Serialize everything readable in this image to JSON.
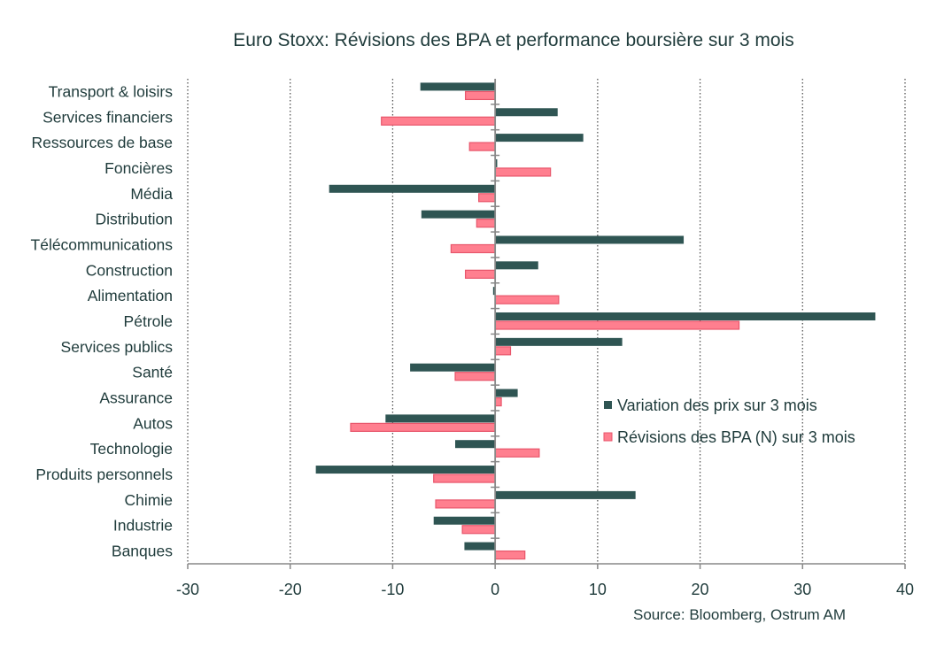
{
  "chart_data": {
    "type": "bar",
    "orientation": "horizontal",
    "title": "Euro Stoxx: Révisions des BPA et performance boursière sur 3 mois",
    "source": "Source: Bloomberg, Ostrum AM",
    "categories": [
      "Transport & loisirs",
      "Services financiers",
      "Ressources de base",
      "Foncières",
      "Média",
      "Distribution",
      "Télécommunications",
      "Construction",
      "Alimentation",
      "Pétrole",
      "Services publics",
      "Santé",
      "Assurance",
      "Autos",
      "Technologie",
      "Produits personnels",
      "Chimie",
      "Industrie",
      "Banques"
    ],
    "series": [
      {
        "name": "Variation des prix sur 3 mois",
        "color": "#2f5553",
        "values": [
          -7.3,
          6.1,
          8.6,
          0.2,
          -16.2,
          -7.2,
          18.4,
          4.2,
          -0.2,
          37.1,
          12.4,
          -8.3,
          2.2,
          -10.7,
          -3.9,
          -17.5,
          13.7,
          -6.0,
          -3.0
        ]
      },
      {
        "name": "Révisions des BPA (N) sur 3 mois",
        "color": "#ff7f8f",
        "values": [
          -2.9,
          -11.1,
          -2.5,
          5.4,
          -1.6,
          -1.8,
          -4.3,
          -2.9,
          6.2,
          23.8,
          1.5,
          -3.9,
          0.6,
          -14.1,
          4.3,
          -6.0,
          -5.8,
          -3.2,
          2.9
        ]
      }
    ],
    "xlim": [
      -30,
      40
    ],
    "xticks": [
      -30,
      -20,
      -10,
      0,
      10,
      20,
      30,
      40
    ],
    "grid": "vertical dotted",
    "legend_position": "right-middle"
  }
}
